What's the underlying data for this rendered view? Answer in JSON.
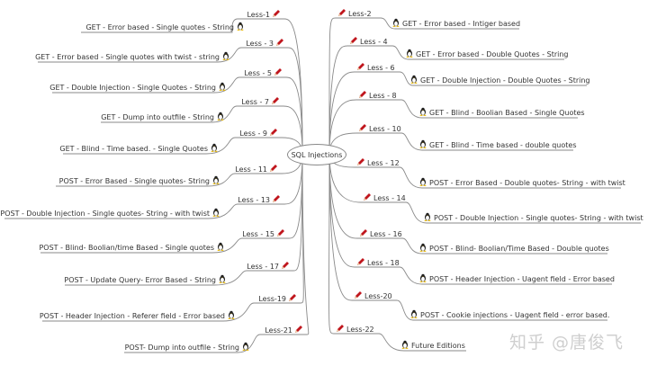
{
  "center": {
    "label": "SQL Injections"
  },
  "colors": {
    "line": "#8a8a8a",
    "pencil": "#c0161d",
    "text": "#333333"
  },
  "icons": {
    "lesson": "pencil-icon",
    "leaf": "linux-tux-icon"
  },
  "left": [
    {
      "lesson": "Less-1",
      "title": "GET - Error based - Single quotes - String"
    },
    {
      "lesson": "Less - 3",
      "title": "GET - Error based - Single quotes with twist - string"
    },
    {
      "lesson": "Less - 5",
      "title": "GET - Double Injection - Single Quotes - String"
    },
    {
      "lesson": "Less - 7",
      "title": "GET - Dump into outfile - String"
    },
    {
      "lesson": "Less - 9",
      "title": "GET - Blind - Time based. -  Single Quotes"
    },
    {
      "lesson": "Less - 11",
      "title": "POST - Error Based - Single quotes- String"
    },
    {
      "lesson": "Less - 13",
      "title": "POST - Double Injection - Single quotes- String - with twist"
    },
    {
      "lesson": "Less - 15",
      "title": "POST - Blind- Boolian/time Based - Single quotes"
    },
    {
      "lesson": "Less - 17",
      "title": "POST - Update Query- Error Based - String"
    },
    {
      "lesson": "Less-19",
      "title": "POST - Header Injection - Referer field - Error based"
    },
    {
      "lesson": "Less-21",
      "title": "POST- Dump into outfile - String"
    }
  ],
  "right": [
    {
      "lesson": "Less-2",
      "title": "GET - Error based - Intiger based"
    },
    {
      "lesson": "Less - 4",
      "title": "GET - Error based - Double Quotes - String"
    },
    {
      "lesson": "Less - 6",
      "title": "GET - Double Injection - Double Quotes - String"
    },
    {
      "lesson": "Less - 8",
      "title": "GET - Blind - Boolian Based - Single Quotes"
    },
    {
      "lesson": "Less - 10",
      "title": "GET - Blind - Time based - double quotes"
    },
    {
      "lesson": "Less - 12",
      "title": "POST - Error Based - Double quotes- String - with twist"
    },
    {
      "lesson": "Less - 14",
      "title": "POST - Double Injection - Single quotes- String - with twist"
    },
    {
      "lesson": "Less - 16",
      "title": "POST - Blind- Boolian/Time Based - Double quotes"
    },
    {
      "lesson": "Less - 18",
      "title": "POST - Header Injection - Uagent field - Error based"
    },
    {
      "lesson": "Less-20",
      "title": "POST - Cookie injections - Uagent field - error based."
    },
    {
      "lesson": "Less-22",
      "title": "Future Editions"
    }
  ],
  "watermark": "知乎 @唐俊飞"
}
